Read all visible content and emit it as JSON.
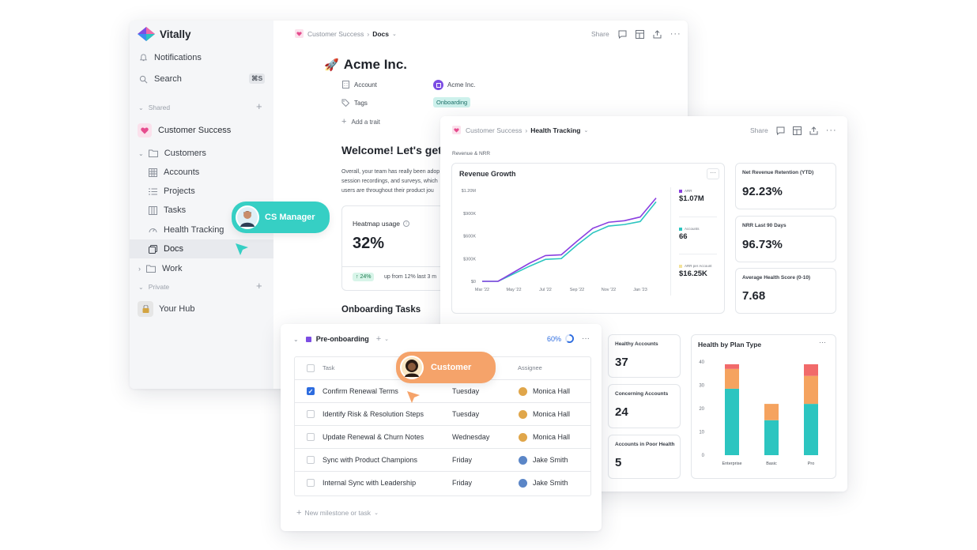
{
  "app": {
    "name": "Vitally",
    "nav": {
      "notifications": "Notifications",
      "search": "Search",
      "search_shortcut": "⌘S"
    },
    "sections": {
      "shared": "Shared",
      "private": "Private"
    },
    "workspace": "Customer Success",
    "tree": [
      {
        "label": "Customers",
        "type": "folder",
        "expanded": true
      },
      {
        "label": "Accounts",
        "type": "table"
      },
      {
        "label": "Projects",
        "type": "list"
      },
      {
        "label": "Tasks",
        "type": "board"
      },
      {
        "label": "Health Tracking",
        "type": "gauge"
      },
      {
        "label": "Docs",
        "type": "doc",
        "active": true
      },
      {
        "label": "Work",
        "type": "folder",
        "expanded": false
      }
    ],
    "private_items": [
      {
        "label": "Your Hub"
      }
    ]
  },
  "doc": {
    "breadcrumb": {
      "parent": "Customer Success",
      "current": "Docs"
    },
    "actions": {
      "share": "Share"
    },
    "title": "Acme Inc.",
    "title_emoji": "🚀",
    "props": {
      "account_label": "Account",
      "account_value": "Acme Inc.",
      "tags_label": "Tags",
      "tags_value": "Onboarding",
      "add_trait": "Add a trait"
    },
    "welcome_heading": "Welcome! Let's get",
    "body_lines": [
      "Overall, your team has really been adop",
      "session recordings, and surveys, which",
      "users are throughout their product jou"
    ],
    "heatmap": {
      "label": "Heatmap usage",
      "value": "32%",
      "delta": "24%",
      "delta_text": "up from 12% last 3 m"
    },
    "onboarding_tasks": "Onboarding Tasks"
  },
  "health": {
    "breadcrumb": {
      "parent": "Customer Success",
      "current": "Health Tracking"
    },
    "actions": {
      "share": "Share"
    },
    "section_label": "Revenue & NRR",
    "revenue_card": {
      "title": "Revenue Growth",
      "legend": [
        {
          "name": "ARR",
          "value": "$1.07M",
          "color": "#8a3fe0"
        },
        {
          "name": "Accounts",
          "value": "66",
          "color": "#2cc5c0"
        },
        {
          "name": "ARR per Account",
          "value": "$16.25K",
          "color": "#f3e29a"
        }
      ]
    },
    "metrics": [
      {
        "label": "Net Revenue Retention (YTD)",
        "value": "92.23%"
      },
      {
        "label": "NRR Last 90 Days",
        "value": "96.73%"
      },
      {
        "label": "Average Health Score (0-10)",
        "value": "7.68"
      }
    ],
    "small_metrics": [
      {
        "label": "Healthy Accounts",
        "value": "37"
      },
      {
        "label": "Concerning Accounts",
        "value": "24"
      },
      {
        "label": "Accounts in Poor Health",
        "value": "5"
      }
    ],
    "plan_card": {
      "title": "Health by Plan Type"
    }
  },
  "chart_data": [
    {
      "type": "line",
      "title": "Revenue Growth",
      "x": [
        "Mar '22",
        "Apr '22",
        "May '22",
        "Jun '22",
        "Jul '22",
        "Aug '22",
        "Sep '22",
        "Oct '22",
        "Nov '22",
        "Dec '22",
        "Jan '23",
        "Feb '23"
      ],
      "x_tick_labels": [
        "Mar '22",
        "May '22",
        "Jul '22",
        "Sep '22",
        "Nov '22",
        "Jan '23"
      ],
      "y_tick_labels": [
        "$0",
        "$300K",
        "$600K",
        "$900K",
        "$1.20M"
      ],
      "ylim": [
        0,
        1200000
      ],
      "series": [
        {
          "name": "ARR",
          "color": "#8a3fe0",
          "values": [
            0,
            0,
            120000,
            240000,
            340000,
            350000,
            530000,
            700000,
            780000,
            800000,
            850000,
            1100000
          ]
        },
        {
          "name": "Accounts",
          "color": "#2cc5c0",
          "values": [
            0,
            0,
            100000,
            200000,
            290000,
            300000,
            480000,
            640000,
            730000,
            750000,
            790000,
            1050000
          ]
        }
      ],
      "grid": false
    },
    {
      "type": "bar",
      "title": "Health by Plan Type",
      "stacked": true,
      "categories": [
        "Enterprise",
        "Basic",
        "Pro"
      ],
      "y_tick_labels": [
        "0",
        "10",
        "20",
        "30",
        "40"
      ],
      "ylim": [
        0,
        40
      ],
      "series": [
        {
          "color": "#2cc5c0",
          "values": [
            28.5,
            15,
            22
          ]
        },
        {
          "color": "#f5a35f",
          "values": [
            8.5,
            7,
            12
          ]
        },
        {
          "color": "#f16a6a",
          "values": [
            2,
            0,
            5
          ]
        }
      ]
    }
  ],
  "tasks": {
    "milestone": "Pre-onboarding",
    "progress": "60%",
    "progress_fraction": 0.6,
    "columns": {
      "task": "Task",
      "assignee": "Assignee"
    },
    "rows": [
      {
        "task": "Confirm Renewal Terms",
        "day": "Tuesday",
        "assignee": "Monica Hall",
        "checked": true
      },
      {
        "task": "Identify Risk & Resolution Steps",
        "day": "Tuesday",
        "assignee": "Monica Hall",
        "checked": false
      },
      {
        "task": "Update Renewal & Churn Notes",
        "day": "Wednesday",
        "assignee": "Monica Hall",
        "checked": false
      },
      {
        "task": "Sync with Product Champions",
        "day": "Friday",
        "assignee": "Jake Smith",
        "checked": false
      },
      {
        "task": "Internal Sync with Leadership",
        "day": "Friday",
        "assignee": "Jake Smith",
        "checked": false
      }
    ],
    "new_item": "New milestone or task"
  },
  "badges": {
    "cs_manager": "CS Manager",
    "customer": "Customer",
    "cs_color": "#36cfc4",
    "customer_color": "#f5a36a"
  }
}
